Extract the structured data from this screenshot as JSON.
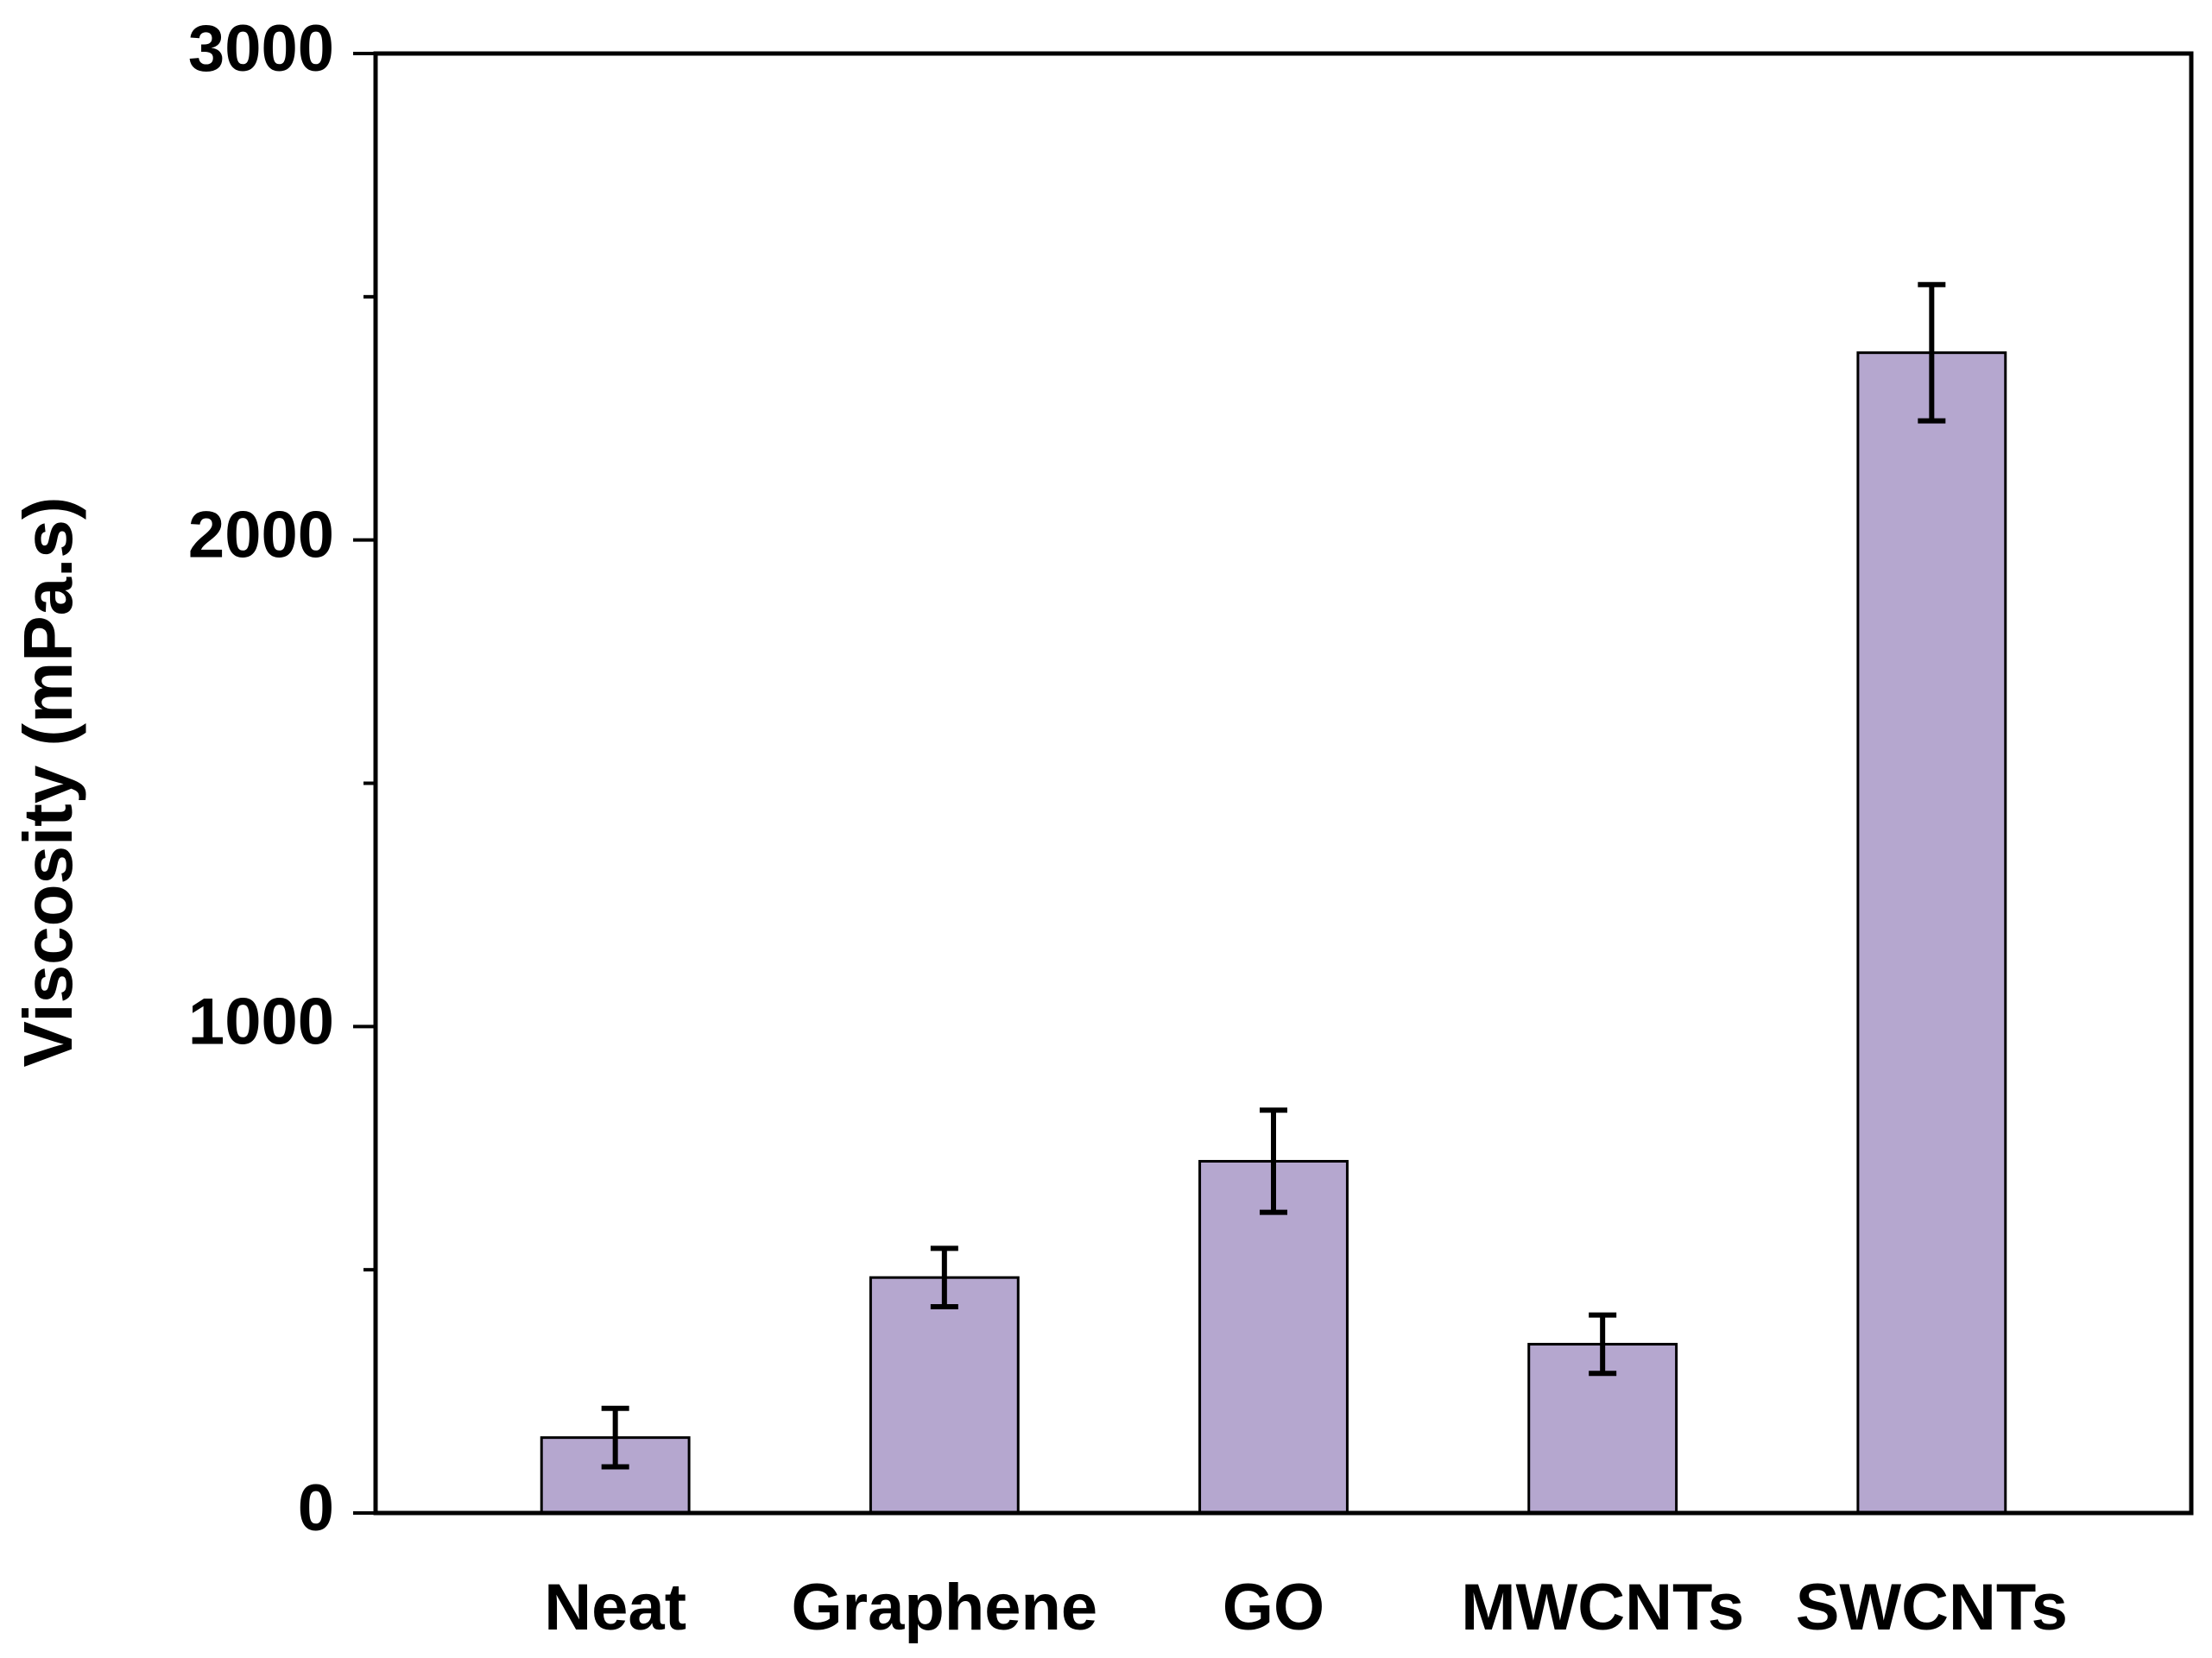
{
  "chart_data": {
    "type": "bar",
    "y_label": "Viscosity (mPa.s)",
    "categories": [
      "Neat",
      "Graphene",
      "GO",
      "MWCNTs",
      "SWCNTs"
    ],
    "values": [
      155,
      484,
      723,
      347,
      2385
    ],
    "errors": [
      60,
      60,
      105,
      60,
      140
    ],
    "color": "#b5a7cf",
    "ylim": [
      0,
      3000
    ],
    "yticks": [
      0,
      1000,
      2000,
      3000
    ],
    "minor_yticks": [
      500,
      1500,
      2500
    ],
    "grid": false
  }
}
